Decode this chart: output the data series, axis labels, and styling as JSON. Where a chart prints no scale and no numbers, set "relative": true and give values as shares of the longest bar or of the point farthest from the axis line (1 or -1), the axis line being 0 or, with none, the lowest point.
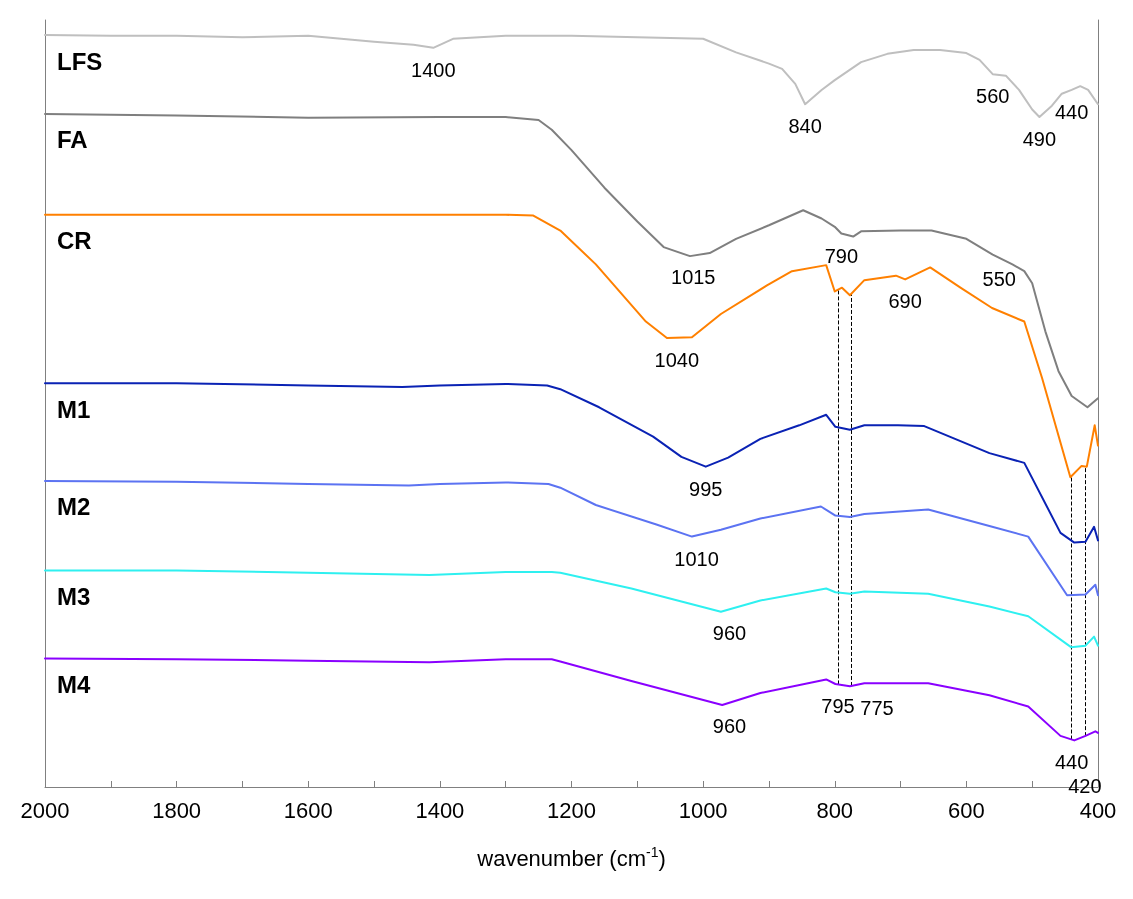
{
  "chart_data": {
    "type": "line",
    "relative": true,
    "xlabel": "wavenumber (cm$^{-1}$)",
    "xlim": [
      2000,
      400
    ],
    "xticks": [
      2000,
      {
        "value": 1900,
        "label": null
      },
      1800,
      {
        "value": 1700,
        "label": null
      },
      1600,
      {
        "value": 1500,
        "label": null
      },
      1400,
      {
        "value": 1300,
        "label": null
      },
      1200,
      {
        "value": 1100,
        "label": null
      },
      1000,
      {
        "value": 900,
        "label": null
      },
      800,
      {
        "value": 700,
        "label": null
      },
      600,
      {
        "value": 500,
        "label": null
      },
      400
    ],
    "marker": "none",
    "series": [
      {
        "name": "LFS",
        "color": "#bfbfbf",
        "x": [
          2000,
          1900,
          1800,
          1700,
          1600,
          1500,
          1440,
          1410,
          1380,
          1300,
          1200,
          1100,
          1000,
          950,
          900,
          880,
          860,
          845,
          820,
          800,
          760,
          720,
          680,
          640,
          600,
          580,
          560,
          540,
          520,
          500,
          489,
          470,
          455,
          440,
          427,
          415,
          400
        ],
        "values": [
          1.0,
          0.999,
          0.999,
          0.997,
          0.999,
          0.991,
          0.987,
          0.983,
          0.995,
          0.999,
          0.999,
          0.997,
          0.995,
          0.977,
          0.962,
          0.955,
          0.935,
          0.908,
          0.927,
          0.94,
          0.964,
          0.975,
          0.98,
          0.98,
          0.976,
          0.967,
          0.948,
          0.946,
          0.927,
          0.901,
          0.891,
          0.906,
          0.922,
          0.927,
          0.932,
          0.927,
          0.908
        ]
      },
      {
        "name": "FA",
        "color": "#7f7f7f",
        "x": [
          2000,
          1900,
          1800,
          1600,
          1400,
          1300,
          1250,
          1230,
          1200,
          1150,
          1100,
          1060,
          1020,
          990,
          950,
          900,
          848,
          820,
          800,
          790,
          772,
          760,
          700,
          653,
          600,
          560,
          530,
          512,
          500,
          480,
          460,
          440,
          416,
          400
        ],
        "values": [
          0.895,
          0.894,
          0.893,
          0.89,
          0.891,
          0.891,
          0.887,
          0.874,
          0.847,
          0.797,
          0.752,
          0.718,
          0.706,
          0.71,
          0.729,
          0.747,
          0.767,
          0.756,
          0.745,
          0.736,
          0.732,
          0.739,
          0.74,
          0.74,
          0.729,
          0.708,
          0.695,
          0.686,
          0.67,
          0.606,
          0.553,
          0.52,
          0.505,
          0.517
        ]
      },
      {
        "name": "CR",
        "color": "#ff8000",
        "x": [
          2000,
          1800,
          1600,
          1400,
          1300,
          1258,
          1217,
          1163,
          1087,
          1055,
          1017,
          973,
          903,
          865,
          813,
          800,
          789,
          777,
          755,
          707,
          693,
          655,
          609,
          561,
          512,
          485,
          442,
          425,
          417,
          405,
          400
        ],
        "values": [
          0.761,
          0.761,
          0.761,
          0.761,
          0.761,
          0.76,
          0.74,
          0.695,
          0.619,
          0.597,
          0.598,
          0.629,
          0.667,
          0.686,
          0.694,
          0.659,
          0.664,
          0.654,
          0.674,
          0.68,
          0.675,
          0.691,
          0.664,
          0.637,
          0.619,
          0.544,
          0.412,
          0.427,
          0.426,
          0.481,
          0.454
        ]
      },
      {
        "name": "M1",
        "color": "#0a22b4",
        "x": [
          2000,
          1800,
          1600,
          1457,
          1400,
          1300,
          1237,
          1217,
          1158,
          1076,
          1033,
          996,
          962,
          913,
          854,
          813,
          799,
          777,
          755,
          704,
          664,
          565,
          512,
          457,
          436,
          419,
          406,
          400
        ],
        "values": [
          0.537,
          0.537,
          0.534,
          0.532,
          0.534,
          0.536,
          0.534,
          0.529,
          0.505,
          0.466,
          0.439,
          0.426,
          0.438,
          0.463,
          0.481,
          0.495,
          0.479,
          0.475,
          0.481,
          0.481,
          0.48,
          0.444,
          0.431,
          0.338,
          0.325,
          0.326,
          0.346,
          0.328
        ]
      },
      {
        "name": "M2",
        "color": "#5c73f2",
        "x": [
          2000,
          1800,
          1600,
          1447,
          1400,
          1300,
          1235,
          1217,
          1163,
          1071,
          1017,
          973,
          913,
          821,
          799,
          777,
          755,
          658,
          565,
          506,
          447,
          419,
          404,
          400
        ],
        "values": [
          0.407,
          0.406,
          0.403,
          0.401,
          0.403,
          0.405,
          0.403,
          0.398,
          0.375,
          0.349,
          0.333,
          0.342,
          0.357,
          0.373,
          0.361,
          0.359,
          0.363,
          0.369,
          0.347,
          0.333,
          0.255,
          0.256,
          0.269,
          0.255
        ]
      },
      {
        "name": "M3",
        "color": "#2ef0f0",
        "x": [
          2000,
          1800,
          1600,
          1416,
          1300,
          1230,
          1217,
          1109,
          973,
          913,
          813,
          799,
          777,
          755,
          658,
          565,
          506,
          441,
          419,
          406,
          400
        ],
        "values": [
          0.288,
          0.288,
          0.285,
          0.282,
          0.286,
          0.286,
          0.285,
          0.264,
          0.233,
          0.248,
          0.264,
          0.259,
          0.257,
          0.26,
          0.257,
          0.24,
          0.227,
          0.186,
          0.188,
          0.2,
          0.188
        ]
      },
      {
        "name": "M4",
        "color": "#8a00ff",
        "x": [
          2000,
          1800,
          1600,
          1416,
          1300,
          1230,
          1217,
          1109,
          971,
          913,
          813,
          799,
          777,
          755,
          658,
          565,
          506,
          457,
          436,
          419,
          404,
          400
        ],
        "values": [
          0.171,
          0.17,
          0.168,
          0.166,
          0.17,
          0.17,
          0.167,
          0.141,
          0.109,
          0.125,
          0.143,
          0.137,
          0.134,
          0.138,
          0.138,
          0.122,
          0.107,
          0.068,
          0.062,
          0.068,
          0.074,
          0.072
        ]
      }
    ],
    "annotations": [
      {
        "text": "1400",
        "x": 1410,
        "y": 0.983
      },
      {
        "text": "840",
        "x": 845,
        "y": 0.908
      },
      {
        "text": "560",
        "x": 560,
        "y": 0.948
      },
      {
        "text": "490",
        "x": 489,
        "y": 0.891
      },
      {
        "text": "440",
        "x": 440,
        "y": 0.927
      },
      {
        "text": "1015",
        "x": 1015,
        "y": 0.707
      },
      {
        "text": "790",
        "x": 790,
        "y": 0.736
      },
      {
        "text": "550",
        "x": 550,
        "y": 0.705
      },
      {
        "text": "1040",
        "x": 1040,
        "y": 0.597
      },
      {
        "text": "690",
        "x": 693,
        "y": 0.675
      },
      {
        "text": "995",
        "x": 996,
        "y": 0.426
      },
      {
        "text": "1010",
        "x": 1010,
        "y": 0.333
      },
      {
        "text": "960",
        "x": 960,
        "y": 0.234
      },
      {
        "text": "960",
        "x": 960,
        "y": 0.11
      }
    ],
    "ref_lines": [
      {
        "axis": "x",
        "value": 795,
        "label": "795",
        "line_style": "dashed",
        "color": "#000000"
      },
      {
        "axis": "x",
        "value": 775,
        "label": "775",
        "line_style": "dashed",
        "color": "#000000"
      },
      {
        "axis": "x",
        "value": 440,
        "label": "440",
        "line_style": "dashed",
        "color": "#000000"
      },
      {
        "axis": "x",
        "value": 420,
        "label": "420",
        "line_style": "dashed",
        "color": "#000000"
      }
    ]
  }
}
